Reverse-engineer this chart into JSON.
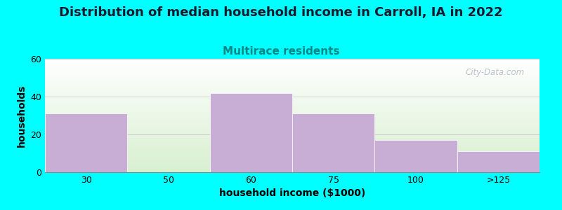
{
  "title": "Distribution of median household income in Carroll, IA in 2022",
  "subtitle": "Multirace residents",
  "xlabel": "household income ($1000)",
  "ylabel": "households",
  "background_color": "#00FFFF",
  "plot_bg_top": "#ffffff",
  "plot_bg_bottom": "#d8f0d0",
  "bar_color": "#c8aed4",
  "categories": [
    "30",
    "50",
    "60",
    "75",
    "100",
    ">125"
  ],
  "values": [
    31,
    0,
    42,
    31,
    17,
    11
  ],
  "ylim": [
    0,
    60
  ],
  "yticks": [
    0,
    20,
    40,
    60
  ],
  "grid_color": "#cccccc",
  "title_fontsize": 13,
  "title_color": "#1a1a2e",
  "subtitle_fontsize": 11,
  "subtitle_color": "#008888",
  "axis_label_fontsize": 10,
  "tick_fontsize": 9,
  "watermark_text": "City-Data.com",
  "watermark_color": "#b0b8c0"
}
